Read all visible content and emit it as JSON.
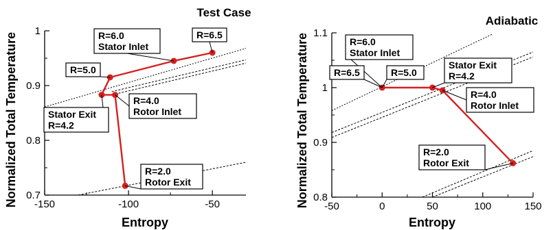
{
  "colors": {
    "series": "#d42020",
    "line": "#000000",
    "bg": "#ffffff"
  },
  "chart_data": [
    {
      "type": "line",
      "title": "Test Case",
      "xlabel": "Entropy",
      "ylabel": "Normalized Total Temperature",
      "xlim": [
        -150,
        -30
      ],
      "ylim": [
        0.7,
        1.0
      ],
      "xticks": [
        -150,
        -100,
        -50
      ],
      "yticks": [
        0.7,
        0.8,
        0.9,
        1.0
      ],
      "ytick_labels": [
        "0.7",
        "0.8",
        "0.9",
        "1"
      ],
      "grid": false,
      "series": [
        {
          "values": [
            {
              "x": -50,
              "y": 0.96
            },
            {
              "x": -73,
              "y": 0.945
            },
            {
              "x": -111,
              "y": 0.915
            },
            {
              "x": -116,
              "y": 0.883
            },
            {
              "x": -108,
              "y": 0.883
            },
            {
              "x": -102,
              "y": 0.717
            }
          ]
        }
      ],
      "reference_lines": [
        {
          "x": [
            -150,
            -30
          ],
          "y": [
            0.861,
            0.968
          ],
          "dash": "2,2"
        },
        {
          "x": [
            -110,
            -30
          ],
          "y": [
            0.889,
            0.947
          ],
          "dash": "3,2"
        },
        {
          "x": [
            -110,
            -30
          ],
          "y": [
            0.883,
            0.941
          ],
          "dash": "3,2"
        },
        {
          "x": [
            -130,
            -30
          ],
          "y": [
            0.7,
            0.76
          ],
          "dash": "3,2"
        }
      ],
      "annotations": [
        {
          "lines": [
            "R=6.0",
            "Stator Inlet"
          ],
          "target": {
            "x": -73,
            "y": 0.945
          }
        },
        {
          "lines": [
            "R=6.5"
          ],
          "target": {
            "x": -50,
            "y": 0.96
          }
        },
        {
          "lines": [
            "R=5.0"
          ],
          "target": {
            "x": -111,
            "y": 0.915
          }
        },
        {
          "lines": [
            "R=4.0",
            "Rotor Inlet"
          ],
          "target": {
            "x": -108,
            "y": 0.883
          }
        },
        {
          "lines": [
            "Stator Exit",
            "R=4.2"
          ],
          "target": {
            "x": -116,
            "y": 0.883
          }
        },
        {
          "lines": [
            "R=2.0",
            "Rotor Exit"
          ],
          "target": {
            "x": -102,
            "y": 0.717
          }
        }
      ]
    },
    {
      "type": "line",
      "title": "Adiabatic",
      "xlabel": "Entropy",
      "ylabel": "Normalized Total Temperature",
      "xlim": [
        -50,
        150
      ],
      "ylim": [
        0.8,
        1.1
      ],
      "xticks": [
        -50,
        0,
        50,
        100,
        150
      ],
      "yticks": [
        0.8,
        0.9,
        1.0,
        1.1
      ],
      "ytick_labels": [
        "0.8",
        "0.9",
        "1",
        "1.1"
      ],
      "grid": false,
      "series": [
        {
          "values": [
            {
              "x": 0,
              "y": 1.0
            },
            {
              "x": 50,
              "y": 1.0
            },
            {
              "x": 60,
              "y": 0.995
            },
            {
              "x": 130,
              "y": 0.862
            }
          ]
        }
      ],
      "reference_lines": [
        {
          "x": [
            -50,
            110
          ],
          "y": [
            0.958,
            1.098
          ],
          "dash": "2,2"
        },
        {
          "x": [
            -50,
            150
          ],
          "y": [
            0.918,
            1.065
          ],
          "dash": "3,2"
        },
        {
          "x": [
            -50,
            150
          ],
          "y": [
            0.909,
            1.056
          ],
          "dash": "3,2"
        },
        {
          "x": [
            40,
            150
          ],
          "y": [
            0.8,
            0.885
          ],
          "dash": "3,2"
        },
        {
          "x": [
            50,
            150
          ],
          "y": [
            0.8,
            0.874
          ],
          "dash": "3,2"
        }
      ],
      "annotations": [
        {
          "lines": [
            "R=6.0",
            "Stator Inlet"
          ],
          "target": {
            "x": 0,
            "y": 1.0
          }
        },
        {
          "lines": [
            "R=6.5"
          ],
          "target": {
            "x": 0,
            "y": 1.0
          }
        },
        {
          "lines": [
            "R=5.0"
          ],
          "target": {
            "x": 0,
            "y": 1.0
          }
        },
        {
          "lines": [
            "Stator Exit",
            "R=4.2"
          ],
          "target": {
            "x": 50,
            "y": 1.0
          }
        },
        {
          "lines": [
            "R=4.0",
            "Rotor Inlet"
          ],
          "target": {
            "x": 60,
            "y": 0.995
          }
        },
        {
          "lines": [
            "R=2.0",
            "Rotor Exit"
          ],
          "target": {
            "x": 130,
            "y": 0.862
          }
        }
      ]
    }
  ]
}
